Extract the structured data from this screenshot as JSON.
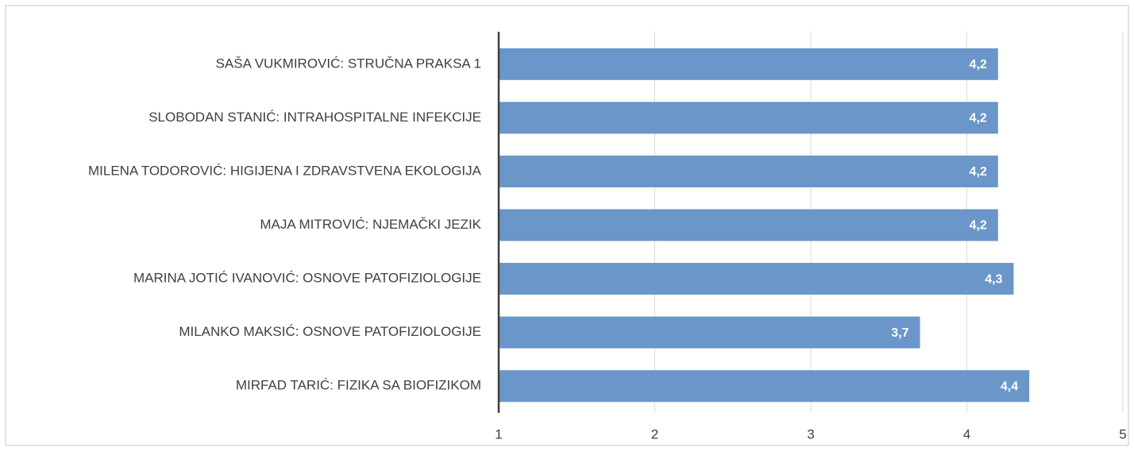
{
  "chart_data": {
    "type": "barh",
    "categories": [
      "SAŠA VUKMIROVIĆ: STRUČNA PRAKSA 1",
      "SLOBODAN STANIĆ: INTRAHOSPITALNE INFEKCIJE",
      "MILENA TODOROVIĆ: HIGIJENA I ZDRAVSTVENA EKOLOGIJA",
      "MAJA MITROVIĆ: NJEMAČKI JEZIK",
      "MARINA JOTIĆ IVANOVIĆ: OSNOVE PATOFIZIOLOGIJE",
      "MILANKO MAKSIĆ: OSNOVE PATOFIZIOLOGIJE",
      "MIRFAD TARIĆ: FIZIKA SA BIOFIZIKOM"
    ],
    "values": [
      4.2,
      4.2,
      4.2,
      4.2,
      4.3,
      3.7,
      4.4
    ],
    "value_labels": [
      "4,2",
      "4,2",
      "4,2",
      "4,2",
      "4,3",
      "3,7",
      "4,4"
    ],
    "color": "#6a96c9",
    "xlim": [
      1,
      5
    ],
    "xticks": [
      1,
      2,
      3,
      4,
      5
    ],
    "grid": true
  }
}
